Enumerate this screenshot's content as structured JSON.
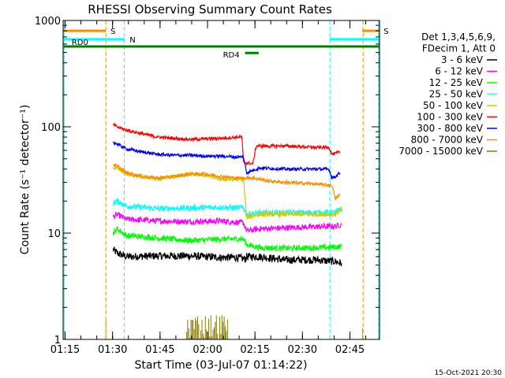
{
  "chart_data": {
    "type": "line",
    "title": "RHESSI Observing Summary Count Rates",
    "xlabel": "Start Time (03-Jul-07 01:14:22)",
    "ylabel": "Count Rate (s⁻¹ detector⁻¹)",
    "yscale": "log",
    "ylim": [
      1,
      1000
    ],
    "xlim_minutes": [
      0,
      100
    ],
    "x_ticks": [
      "01:15",
      "01:30",
      "01:45",
      "02:00",
      "02:15",
      "02:30",
      "02:45"
    ],
    "y_ticks": [
      "1",
      "10",
      "100",
      "1000"
    ],
    "footer": "15-Oct-2021 20:30",
    "legend": {
      "placement": "right",
      "header": [
        "Det 1,3,4,5,6,9,",
        "FDecim 1, Att 0"
      ],
      "entries": [
        {
          "label": "3 - 6 keV",
          "color": "#000000"
        },
        {
          "label": "6 - 12 keV",
          "color": "#ff00ff"
        },
        {
          "label": "12 - 25 keV",
          "color": "#00ff00"
        },
        {
          "label": "25 - 50 keV",
          "color": "#00ffff"
        },
        {
          "label": "50 - 100 keV",
          "color": "#d4c800"
        },
        {
          "label": "100 - 300 keV",
          "color": "#ff0000"
        },
        {
          "label": "300 - 800 keV",
          "color": "#0000ff"
        },
        {
          "label": "800 - 7000 keV",
          "color": "#ff8c00"
        },
        {
          "label": "7000 - 15000 keV",
          "color": "#8b7d00"
        }
      ]
    },
    "flags": [
      {
        "label": "S",
        "color": "#ff8c00",
        "x_start": 0.2,
        "x_end": 13.5,
        "y": 800
      },
      {
        "label": "S",
        "color": "#ff8c00",
        "x_start": 94.5,
        "x_end": 99.8,
        "y": 800
      },
      {
        "label": "N",
        "color": "#00ffff",
        "x_start": 0.2,
        "x_end": 19.5,
        "y": 665
      },
      {
        "label": "",
        "color": "#00ffff",
        "x_start": 84.2,
        "x_end": 99.8,
        "y": 665
      },
      {
        "label": "RD0",
        "color": "#008000",
        "x_start": 0.2,
        "x_end": 99.8,
        "y": 570
      },
      {
        "label": "RD4",
        "color": "#008000",
        "x_start": 57.5,
        "x_end": 61.8,
        "y": 495
      }
    ],
    "markers": [
      {
        "x": 13.5,
        "color": "#ff8c00"
      },
      {
        "x": 19.3,
        "color": "#00ffff"
      },
      {
        "x": 84.3,
        "color": "#00ffff"
      },
      {
        "x": 94.8,
        "color": "#ff8c00"
      },
      {
        "x": 99.7,
        "color": "#ff8c00"
      }
    ],
    "x_minutes_end": [
      0.3,
      99.8
    ],
    "series": [
      {
        "name": "3 - 6 keV",
        "color": "#000000",
        "jitter": 0.6,
        "points": [
          [
            15.8,
            7
          ],
          [
            17,
            6.5
          ],
          [
            20,
            6
          ],
          [
            30,
            6.1
          ],
          [
            40,
            6.1
          ],
          [
            50,
            5.9
          ],
          [
            55,
            5.9
          ],
          [
            57.5,
            5.7
          ],
          [
            58,
            6
          ],
          [
            62,
            6
          ],
          [
            70,
            5.6
          ],
          [
            80,
            5.6
          ],
          [
            86,
            5.4
          ],
          [
            88,
            5.2
          ]
        ]
      },
      {
        "name": "6 - 12 keV",
        "color": "#ff00ff",
        "jitter": 0.45,
        "points": [
          [
            15.8,
            14
          ],
          [
            17,
            15
          ],
          [
            20,
            13.5
          ],
          [
            30,
            13
          ],
          [
            40,
            12.8
          ],
          [
            50,
            13
          ],
          [
            57,
            12.5
          ],
          [
            58,
            10.5
          ],
          [
            62,
            11
          ],
          [
            70,
            11.2
          ],
          [
            80,
            11.5
          ],
          [
            86,
            11.6
          ],
          [
            88,
            12
          ]
        ]
      },
      {
        "name": "12 - 25 keV",
        "color": "#00ff00",
        "jitter": 0.45,
        "points": [
          [
            15.8,
            10
          ],
          [
            17,
            11
          ],
          [
            20,
            9.5
          ],
          [
            30,
            9
          ],
          [
            40,
            8.5
          ],
          [
            50,
            8.8
          ],
          [
            57,
            8.8
          ],
          [
            58,
            7.8
          ],
          [
            62,
            7.3
          ],
          [
            70,
            7.2
          ],
          [
            80,
            7.3
          ],
          [
            86,
            7.4
          ],
          [
            88,
            7.5
          ]
        ]
      },
      {
        "name": "25 - 50 keV",
        "color": "#00ffff",
        "jitter": 0.45,
        "points": [
          [
            15.8,
            19
          ],
          [
            17,
            20
          ],
          [
            20,
            18
          ],
          [
            30,
            17
          ],
          [
            40,
            17.2
          ],
          [
            50,
            17.5
          ],
          [
            57,
            17.3
          ],
          [
            58,
            15
          ],
          [
            62,
            15.5
          ],
          [
            70,
            15.6
          ],
          [
            80,
            15.6
          ],
          [
            86,
            15.6
          ],
          [
            88,
            17
          ]
        ]
      },
      {
        "name": "50 - 100 keV",
        "color": "#d4c800",
        "jitter": 0.35,
        "points": [
          [
            15.8,
            40
          ],
          [
            17,
            42
          ],
          [
            20,
            36
          ],
          [
            25,
            34
          ],
          [
            30,
            32
          ],
          [
            35,
            34
          ],
          [
            40,
            36
          ],
          [
            45,
            35
          ],
          [
            50,
            32
          ],
          [
            55,
            32
          ],
          [
            57,
            32
          ],
          [
            58,
            14
          ],
          [
            62,
            15
          ],
          [
            70,
            15
          ],
          [
            80,
            15
          ],
          [
            86,
            15
          ],
          [
            88,
            17
          ]
        ]
      },
      {
        "name": "100 - 300 keV",
        "color": "#ff0000",
        "jitter": 0.25,
        "points": [
          [
            15.8,
            105
          ],
          [
            17,
            100
          ],
          [
            20,
            93
          ],
          [
            25,
            86
          ],
          [
            30,
            80
          ],
          [
            35,
            78
          ],
          [
            40,
            76
          ],
          [
            45,
            77
          ],
          [
            50,
            78
          ],
          [
            55,
            80
          ],
          [
            56.5,
            80
          ],
          [
            57,
            46
          ],
          [
            60,
            45
          ],
          [
            61,
            66
          ],
          [
            70,
            66
          ],
          [
            80,
            64
          ],
          [
            84,
            64
          ],
          [
            85,
            55
          ],
          [
            86,
            56
          ],
          [
            87.5,
            58
          ]
        ]
      },
      {
        "name": "300 - 800 keV",
        "color": "#0000ff",
        "jitter": 0.25,
        "points": [
          [
            15.8,
            72
          ],
          [
            17,
            69
          ],
          [
            20,
            62
          ],
          [
            25,
            58
          ],
          [
            30,
            55
          ],
          [
            35,
            54
          ],
          [
            40,
            54
          ],
          [
            45,
            53
          ],
          [
            50,
            53
          ],
          [
            55,
            52
          ],
          [
            57,
            52
          ],
          [
            58,
            37
          ],
          [
            62,
            41
          ],
          [
            70,
            40
          ],
          [
            80,
            40
          ],
          [
            84,
            40
          ],
          [
            85,
            33
          ],
          [
            86,
            34
          ],
          [
            87.5,
            37
          ]
        ]
      },
      {
        "name": "800 - 7000 keV",
        "color": "#ff8c00",
        "jitter": 0.25,
        "points": [
          [
            15.8,
            44
          ],
          [
            17,
            43
          ],
          [
            20,
            37
          ],
          [
            25,
            34
          ],
          [
            30,
            33
          ],
          [
            35,
            34
          ],
          [
            40,
            36
          ],
          [
            45,
            36
          ],
          [
            50,
            34
          ],
          [
            55,
            33
          ],
          [
            57,
            33
          ],
          [
            60,
            33
          ],
          [
            65,
            31
          ],
          [
            70,
            30
          ],
          [
            80,
            29
          ],
          [
            85,
            28
          ],
          [
            86,
            21
          ],
          [
            87.5,
            23
          ]
        ]
      },
      {
        "name": "7000 - 15000 keV",
        "color": "#8b7d00",
        "jitter": 0.3,
        "points": []
      }
    ],
    "spikes": [
      {
        "color": "#8b7d00",
        "x_start": 39,
        "x_end": 52,
        "y_max": 1.75
      },
      {
        "color": "#ff8c00",
        "x_start": 13.5,
        "x_end": 13.6,
        "y_max": 1.6
      },
      {
        "color": "#ff8c00",
        "x_start": 94.6,
        "x_end": 94.8,
        "y_max": 1.6
      }
    ]
  }
}
